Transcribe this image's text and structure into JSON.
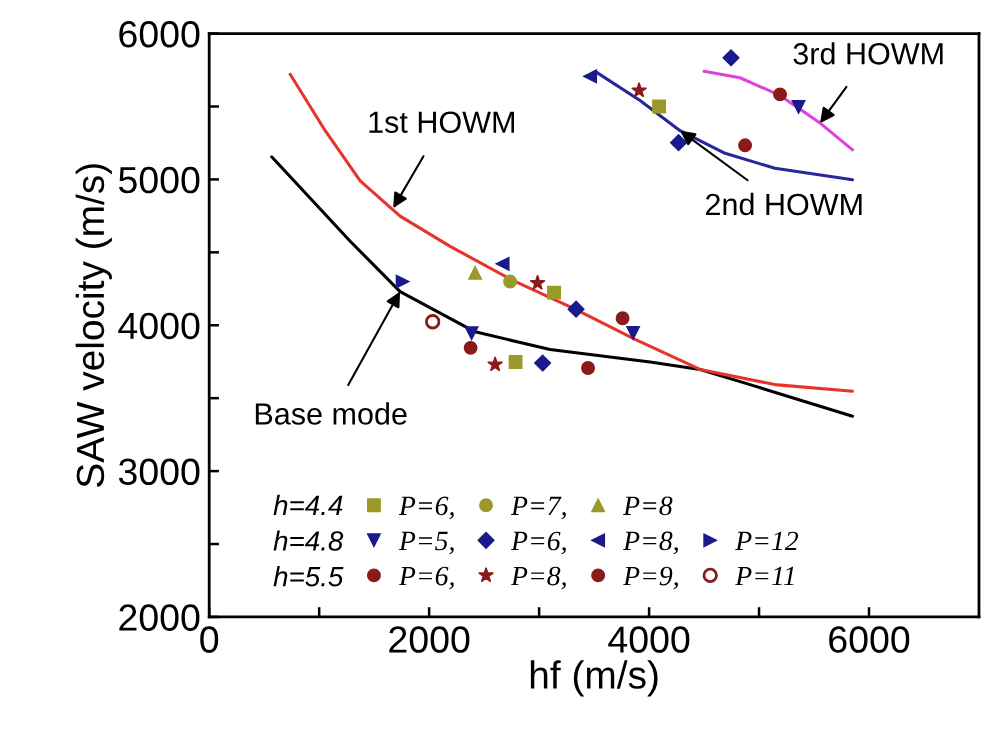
{
  "chart_data": {
    "type": "scatter",
    "xlabel": "hf (m/s)",
    "ylabel": "SAW velocity (m/s)",
    "xlim": [
      0,
      7000
    ],
    "ylim": [
      2000,
      6000
    ],
    "xticks": [
      0,
      {
        "value": 1000,
        "label": null
      },
      2000,
      {
        "value": 3000,
        "label": null
      },
      4000,
      {
        "value": 5000,
        "label": null
      },
      6000
    ],
    "yticks": [
      2000,
      {
        "value": 2500,
        "label": null
      },
      3000,
      {
        "value": 3500,
        "label": null
      },
      4000,
      {
        "value": 4500,
        "label": null
      },
      5000,
      {
        "value": 5500,
        "label": null
      },
      6000
    ],
    "grid": false,
    "legend": "bottom left",
    "annotations": [
      {
        "text": "1st HOWM",
        "x": 1673,
        "y": 4803
      },
      {
        "text": "Base mode",
        "x": 1736,
        "y": 4231
      },
      {
        "text": "2nd HOWM",
        "x": 4282,
        "y": 5334
      },
      {
        "text": "3rd HOWM",
        "x": 5555,
        "y": 5386
      },
      "h=4.4",
      "h=4.8",
      "h=5.5"
    ],
    "series": [
      {
        "type": "line",
        "color": "#000000",
        "x": [
          568,
          1282,
          1736,
          2418,
          3100,
          4009,
          4464,
          4918,
          5850
        ],
        "values": [
          5155,
          4576,
          4231,
          3955,
          3834,
          3748,
          3697,
          3593,
          3376
        ]
      },
      {
        "type": "line",
        "color": "#e8332d",
        "x": [
          736,
          1055,
          1373,
          1736,
          2191,
          2736,
          3327,
          3873,
          4464,
          5145,
          5850
        ],
        "values": [
          5721,
          5334,
          4990,
          4748,
          4541,
          4317,
          4110,
          3903,
          3697,
          3593,
          3548
        ]
      },
      {
        "type": "line",
        "color": "#27279a",
        "x": [
          3464,
          3509,
          3918,
          4282,
          4691,
          5145,
          5850
        ],
        "values": [
          5707,
          5741,
          5541,
          5334,
          5179,
          5076,
          4997
        ]
      },
      {
        "type": "line",
        "color": "#e040e0",
        "x": [
          4500,
          4827,
          5191,
          5555,
          5850
        ],
        "values": [
          5741,
          5697,
          5576,
          5386,
          5203
        ]
      },
      {
        "name": "P=6,",
        "marker": "square",
        "color": "#9a9a2a",
        "x": [
          3136,
          2786,
          4091
        ],
        "values": [
          4224,
          3748,
          5500
        ]
      },
      {
        "name": "P=7,",
        "marker": "circle",
        "color": "#9a9a2a",
        "x": [
          2736
        ],
        "values": [
          4300
        ]
      },
      {
        "name": "P=8",
        "marker": "triangle",
        "color": "#9a9a2a",
        "x": [
          2418
        ],
        "values": [
          4359
        ]
      },
      {
        "name": "P=5,",
        "marker": "triangle-down",
        "color": "#1a1a8c",
        "x": [
          3855,
          2386,
          5359
        ],
        "values": [
          3948,
          3945,
          5497
        ]
      },
      {
        "name": "P=6,",
        "marker": "diamond",
        "color": "#1a1a8c",
        "x": [
          3336,
          3032,
          4268,
          4745
        ],
        "values": [
          4110,
          3741,
          5252,
          5834
        ]
      },
      {
        "name": "P=8,",
        "marker": "triangle-left",
        "color": "#1a1a8c",
        "x": [
          2668,
          3464
        ],
        "values": [
          4421,
          5707
        ]
      },
      {
        "name": "P=12",
        "marker": "triangle-right",
        "color": "#1a1a8c",
        "x": [
          1759
        ],
        "values": [
          4300
        ]
      },
      {
        "name": "P=6,",
        "marker": "circle",
        "color": "#8b1a1a",
        "x": [
          3759,
          3445,
          5191
        ],
        "values": [
          4048,
          3707,
          5583
        ]
      },
      {
        "name": "P=8,",
        "marker": "star",
        "color": "#8b1a1a",
        "x": [
          2986,
          2600,
          3909
        ],
        "values": [
          4290,
          3731,
          5610
        ]
      },
      {
        "name": "P=9,",
        "marker": "circle",
        "color": "#8b1a1a",
        "x": [
          2377,
          4873
        ],
        "values": [
          3845,
          5234
        ]
      },
      {
        "name": "P=11",
        "color": "#8b1a1a",
        "x": [
          2032
        ],
        "values": [
          4024
        ]
      }
    ]
  }
}
